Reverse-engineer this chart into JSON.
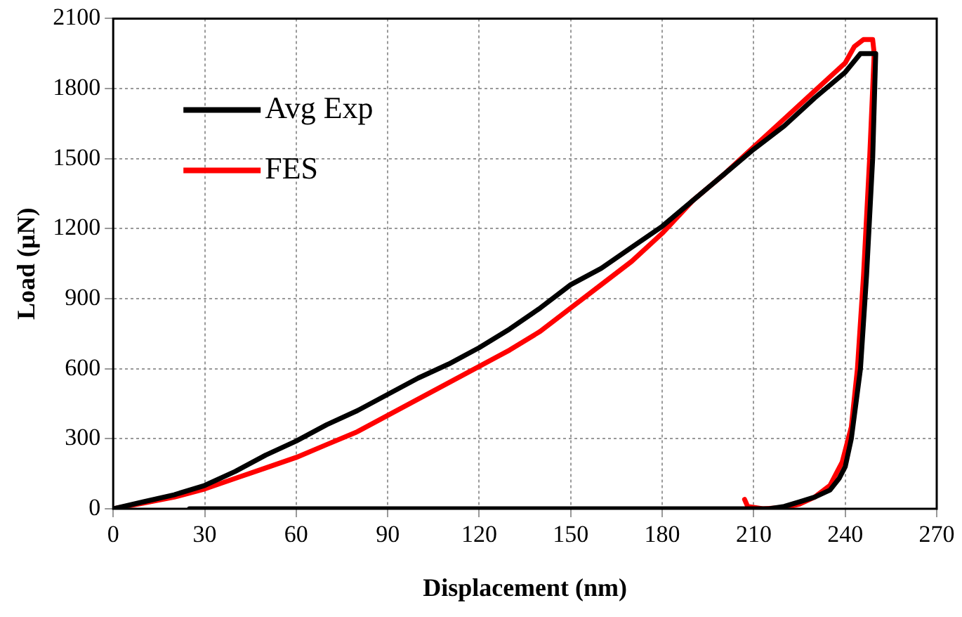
{
  "chart_data": {
    "type": "line",
    "xlabel": "Displacement (nm)",
    "ylabel": "Load (μN)",
    "xlim": [
      0,
      270
    ],
    "xticks": [
      0,
      30,
      60,
      90,
      120,
      150,
      180,
      210,
      240,
      270
    ],
    "ylim": [
      0,
      2100
    ],
    "yticks": [
      0,
      300,
      600,
      900,
      1200,
      1500,
      1800,
      2100
    ],
    "grid": true,
    "legend": "top left",
    "marker": "none",
    "line_style": "solid",
    "series": [
      {
        "name": "Avg Exp",
        "color": "#000000",
        "x": [
          0,
          10,
          20,
          30,
          40,
          50,
          60,
          70,
          80,
          90,
          100,
          110,
          120,
          130,
          140,
          150,
          160,
          170,
          180,
          190,
          200,
          210,
          220,
          230,
          240,
          245,
          250,
          249,
          247,
          245,
          242,
          240,
          238,
          235,
          230,
          225,
          220,
          215,
          210,
          100,
          25
        ],
        "values": [
          0,
          30,
          60,
          100,
          160,
          230,
          290,
          360,
          420,
          490,
          560,
          620,
          690,
          770,
          860,
          960,
          1030,
          1120,
          1210,
          1320,
          1430,
          1540,
          1640,
          1760,
          1870,
          1950,
          1950,
          1500,
          1000,
          600,
          300,
          180,
          130,
          80,
          50,
          30,
          10,
          0,
          0,
          0,
          0
        ]
      },
      {
        "name": "FES",
        "color": "#ff0000",
        "x": [
          0,
          10,
          20,
          30,
          40,
          50,
          60,
          70,
          80,
          90,
          100,
          110,
          120,
          130,
          140,
          150,
          160,
          170,
          180,
          190,
          200,
          210,
          220,
          230,
          240,
          243,
          246,
          249,
          249.5,
          248,
          246,
          244,
          242,
          239,
          235,
          230,
          225,
          220,
          213,
          208,
          207
        ],
        "values": [
          0,
          25,
          50,
          85,
          130,
          175,
          220,
          275,
          330,
          400,
          470,
          540,
          610,
          680,
          760,
          860,
          960,
          1060,
          1180,
          1320,
          1430,
          1550,
          1670,
          1790,
          1910,
          1980,
          2010,
          2010,
          1950,
          1500,
          1000,
          600,
          350,
          200,
          100,
          50,
          20,
          5,
          0,
          10,
          40
        ]
      }
    ]
  }
}
